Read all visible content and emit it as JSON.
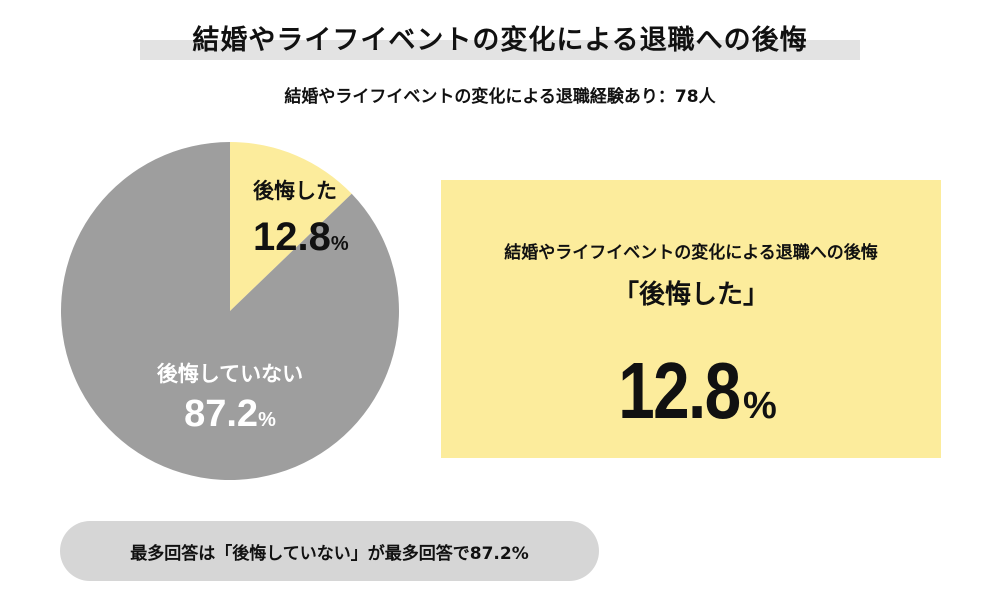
{
  "chart_data": {
    "type": "pie",
    "title": "結婚やライフイベントの変化による退職への後悔",
    "subtitle": "結婚やライフイベントの変化による退職経験あり：78人",
    "slices": [
      {
        "label": "後悔した",
        "value": 12.8,
        "display": "12.8",
        "unit": "%",
        "color": "#fcec9c"
      },
      {
        "label": "後悔していない",
        "value": 87.2,
        "display": "87.2",
        "unit": "%",
        "color": "#9e9e9e"
      }
    ]
  },
  "callout": {
    "heading": "結婚やライフイベントの変化による退職への後悔",
    "answer": "「後悔した」",
    "value": "12.8",
    "unit": "%"
  },
  "note": "最多回答は「後悔していない」が最多回答で87.2%",
  "colors": {
    "title_bar": "#e3e3e3",
    "callout_bg": "#fcec9c",
    "note_bg": "#d6d6d6"
  }
}
